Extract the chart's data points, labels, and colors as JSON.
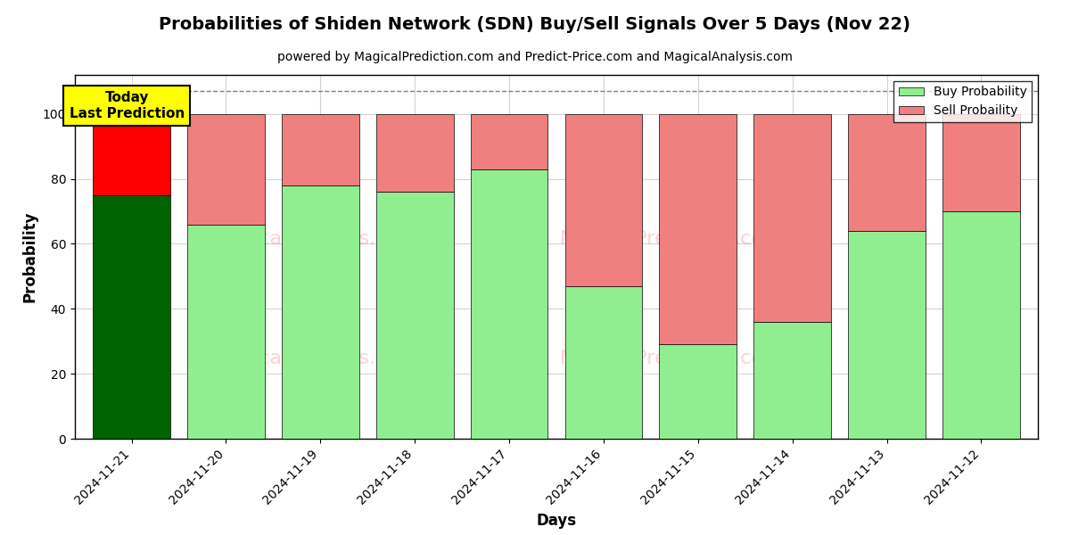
{
  "title": "Probabilities of Shiden Network (SDN) Buy/Sell Signals Over 5 Days (Nov 22)",
  "subtitle": "powered by MagicalPrediction.com and Predict-Price.com and MagicalAnalysis.com",
  "xlabel": "Days",
  "ylabel": "Probability",
  "dates": [
    "2024-11-21",
    "2024-11-20",
    "2024-11-19",
    "2024-11-18",
    "2024-11-17",
    "2024-11-16",
    "2024-11-15",
    "2024-11-14",
    "2024-11-13",
    "2024-11-12"
  ],
  "buy_values": [
    75,
    66,
    78,
    76,
    83,
    47,
    29,
    36,
    64,
    70
  ],
  "sell_values": [
    25,
    34,
    22,
    24,
    17,
    53,
    71,
    64,
    36,
    30
  ],
  "buy_color_first": "#006400",
  "sell_color_first": "#FF0000",
  "buy_color_rest": "#90EE90",
  "sell_color_rest": "#F08080",
  "ylim": [
    0,
    112
  ],
  "yticks": [
    0,
    20,
    40,
    60,
    80,
    100
  ],
  "dashed_line_y": 107,
  "legend_buy_label": "Buy Probability",
  "legend_sell_label": "Sell Probaility",
  "annotation_text": "Today\nLast Prediction",
  "annotation_bg": "#FFFF00",
  "watermark_color": "#F08080",
  "bar_width": 0.82
}
